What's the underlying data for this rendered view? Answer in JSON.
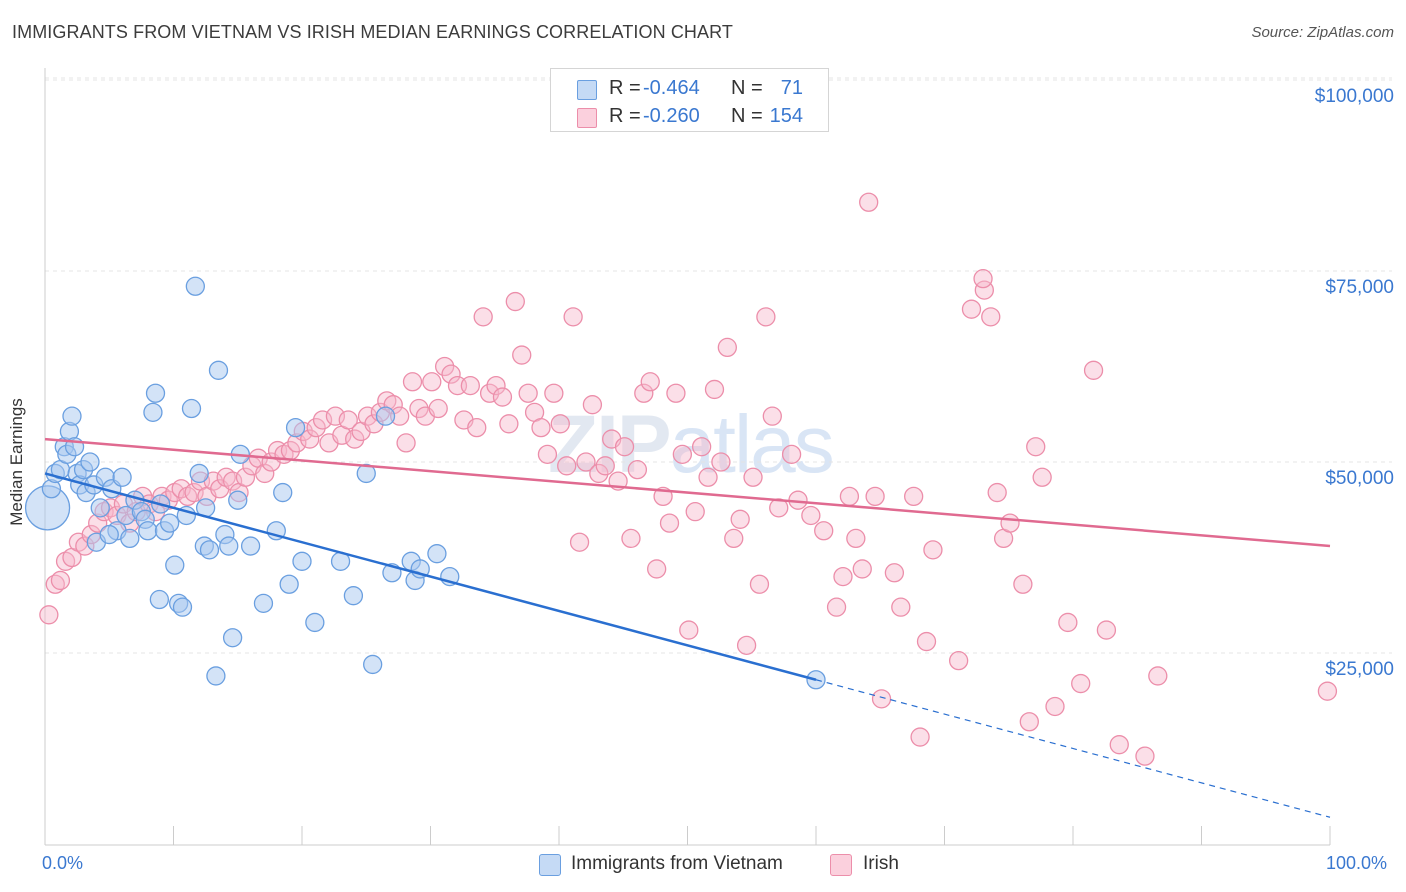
{
  "header": {
    "title": "IMMIGRANTS FROM VIETNAM VS IRISH MEDIAN EARNINGS CORRELATION CHART",
    "source": "Source: ZipAtlas.com"
  },
  "watermark": {
    "zip": "ZIP",
    "atlas": "atlas"
  },
  "legend_top": {
    "rows": [
      {
        "r_label": "R =",
        "r_value": "-0.464",
        "n_label": "N =",
        "n_value": "71"
      },
      {
        "r_label": "R =",
        "r_value": "-0.260",
        "n_label": "N =",
        "n_value": "154"
      }
    ]
  },
  "legend_bottom": {
    "items": [
      {
        "label": "Immigrants from Vietnam"
      },
      {
        "label": "Irish"
      }
    ]
  },
  "axes": {
    "y_title": "Median Earnings",
    "y_ticks": [
      "$100,000",
      "$75,000",
      "$50,000",
      "$25,000"
    ],
    "x_min_label": "0.0%",
    "x_max_label": "100.0%"
  },
  "colors": {
    "vietnam_fill": "#a8c8f0",
    "vietnam_stroke": "#6a9fe0",
    "vietnam_line": "#2a6fd0",
    "irish_fill": "#f7b8cb",
    "irish_stroke": "#ec8eaa",
    "irish_line": "#e06a90",
    "grid": "#e4e4e4",
    "axis_text": "#3a78d0"
  },
  "chart_data": {
    "type": "scatter",
    "title": "IMMIGRANTS FROM VIETNAM VS IRISH MEDIAN EARNINGS CORRELATION CHART",
    "xlabel": "",
    "ylabel": "Median Earnings",
    "xlim": [
      0,
      100
    ],
    "ylim": [
      0,
      105000
    ],
    "grid": true,
    "legend_position": "bottom",
    "series": [
      {
        "name": "Immigrants from Vietnam",
        "R": -0.464,
        "N": 71,
        "trend": {
          "x0": 0,
          "y0": 48500,
          "x1": 60,
          "y1": 21500,
          "dashed_to_x": 100,
          "dashed_to_y": 3500
        },
        "points": [
          [
            0.2,
            44000
          ],
          [
            0.5,
            46500
          ],
          [
            0.8,
            48500
          ],
          [
            1.2,
            49000
          ],
          [
            1.5,
            52000
          ],
          [
            1.7,
            51000
          ],
          [
            1.9,
            54000
          ],
          [
            2.1,
            56000
          ],
          [
            2.3,
            52000
          ],
          [
            2.5,
            48500
          ],
          [
            2.7,
            47000
          ],
          [
            3.0,
            49000
          ],
          [
            3.2,
            46000
          ],
          [
            3.5,
            50000
          ],
          [
            3.8,
            47000
          ],
          [
            4.0,
            39500
          ],
          [
            4.3,
            44000
          ],
          [
            4.7,
            48000
          ],
          [
            5.2,
            46500
          ],
          [
            5.6,
            41000
          ],
          [
            6.0,
            48000
          ],
          [
            6.3,
            43000
          ],
          [
            6.6,
            40000
          ],
          [
            7.0,
            45000
          ],
          [
            7.5,
            43500
          ],
          [
            7.8,
            42500
          ],
          [
            8.0,
            41000
          ],
          [
            8.4,
            56500
          ],
          [
            8.6,
            59000
          ],
          [
            8.9,
            32000
          ],
          [
            9.3,
            41000
          ],
          [
            9.7,
            42000
          ],
          [
            10.1,
            36500
          ],
          [
            10.4,
            31500
          ],
          [
            10.7,
            31000
          ],
          [
            11.0,
            43000
          ],
          [
            11.4,
            57000
          ],
          [
            11.7,
            73000
          ],
          [
            12.0,
            48500
          ],
          [
            12.4,
            39000
          ],
          [
            12.8,
            38500
          ],
          [
            13.3,
            22000
          ],
          [
            13.5,
            62000
          ],
          [
            14.0,
            40500
          ],
          [
            14.3,
            39000
          ],
          [
            14.6,
            27000
          ],
          [
            15.2,
            51000
          ],
          [
            16.0,
            39000
          ],
          [
            17.0,
            31500
          ],
          [
            18.0,
            41000
          ],
          [
            18.5,
            46000
          ],
          [
            19.0,
            34000
          ],
          [
            19.5,
            54500
          ],
          [
            20.0,
            37000
          ],
          [
            21.0,
            29000
          ],
          [
            23.0,
            37000
          ],
          [
            24.0,
            32500
          ],
          [
            25.0,
            48500
          ],
          [
            25.5,
            23500
          ],
          [
            27.0,
            35500
          ],
          [
            28.5,
            37000
          ],
          [
            28.8,
            34500
          ],
          [
            29.2,
            36000
          ],
          [
            30.5,
            38000
          ],
          [
            31.5,
            35000
          ],
          [
            26.5,
            56000
          ],
          [
            15.0,
            45000
          ],
          [
            9.0,
            44500
          ],
          [
            5.0,
            40500
          ],
          [
            12.5,
            44000
          ],
          [
            60.0,
            21500
          ]
        ]
      },
      {
        "name": "Irish",
        "R": -0.26,
        "N": 154,
        "trend": {
          "x0": 0,
          "y0": 53000,
          "x1": 100,
          "y1": 39000
        },
        "points": [
          [
            0.3,
            30000
          ],
          [
            0.8,
            34000
          ],
          [
            1.2,
            34500
          ],
          [
            1.6,
            37000
          ],
          [
            2.1,
            37500
          ],
          [
            2.6,
            39500
          ],
          [
            3.1,
            39000
          ],
          [
            3.6,
            40500
          ],
          [
            4.1,
            42000
          ],
          [
            4.6,
            43500
          ],
          [
            5.1,
            44000
          ],
          [
            5.6,
            43000
          ],
          [
            6.1,
            44500
          ],
          [
            6.6,
            42000
          ],
          [
            7.1,
            43500
          ],
          [
            7.6,
            45500
          ],
          [
            8.1,
            44500
          ],
          [
            8.6,
            43500
          ],
          [
            9.1,
            45500
          ],
          [
            9.6,
            45000
          ],
          [
            10.1,
            46000
          ],
          [
            10.6,
            46500
          ],
          [
            11.1,
            45500
          ],
          [
            11.6,
            46000
          ],
          [
            12.1,
            47500
          ],
          [
            12.6,
            45500
          ],
          [
            13.1,
            47500
          ],
          [
            13.6,
            46500
          ],
          [
            14.1,
            48000
          ],
          [
            14.6,
            47500
          ],
          [
            15.1,
            46000
          ],
          [
            15.6,
            48000
          ],
          [
            16.1,
            49500
          ],
          [
            16.6,
            50500
          ],
          [
            17.1,
            48500
          ],
          [
            17.6,
            50000
          ],
          [
            18.1,
            51500
          ],
          [
            18.6,
            51000
          ],
          [
            19.1,
            51500
          ],
          [
            19.6,
            52500
          ],
          [
            20.1,
            54000
          ],
          [
            20.6,
            53000
          ],
          [
            21.1,
            54500
          ],
          [
            21.6,
            55500
          ],
          [
            22.1,
            52500
          ],
          [
            22.6,
            56000
          ],
          [
            23.1,
            53500
          ],
          [
            23.6,
            55500
          ],
          [
            24.1,
            53000
          ],
          [
            24.6,
            54000
          ],
          [
            25.1,
            56000
          ],
          [
            25.6,
            55000
          ],
          [
            26.1,
            56500
          ],
          [
            26.6,
            58000
          ],
          [
            27.1,
            57500
          ],
          [
            27.6,
            56000
          ],
          [
            28.1,
            52500
          ],
          [
            28.6,
            60500
          ],
          [
            29.1,
            57000
          ],
          [
            29.6,
            56000
          ],
          [
            30.1,
            60500
          ],
          [
            30.6,
            57000
          ],
          [
            31.1,
            62500
          ],
          [
            31.6,
            61500
          ],
          [
            32.1,
            60000
          ],
          [
            32.6,
            55500
          ],
          [
            33.1,
            60000
          ],
          [
            33.6,
            54500
          ],
          [
            34.1,
            69000
          ],
          [
            34.6,
            59000
          ],
          [
            35.1,
            60000
          ],
          [
            35.6,
            58500
          ],
          [
            36.1,
            55000
          ],
          [
            36.6,
            71000
          ],
          [
            37.1,
            64000
          ],
          [
            37.6,
            59000
          ],
          [
            38.1,
            56500
          ],
          [
            38.6,
            54500
          ],
          [
            39.1,
            51000
          ],
          [
            39.6,
            59000
          ],
          [
            40.1,
            55000
          ],
          [
            40.6,
            49500
          ],
          [
            41.1,
            69000
          ],
          [
            41.6,
            39500
          ],
          [
            42.1,
            50000
          ],
          [
            42.6,
            57500
          ],
          [
            43.1,
            48500
          ],
          [
            43.6,
            49500
          ],
          [
            44.1,
            53000
          ],
          [
            44.6,
            47500
          ],
          [
            45.1,
            52000
          ],
          [
            45.6,
            40000
          ],
          [
            46.1,
            49000
          ],
          [
            46.6,
            59000
          ],
          [
            47.1,
            60500
          ],
          [
            47.6,
            36000
          ],
          [
            48.1,
            45500
          ],
          [
            48.6,
            42000
          ],
          [
            49.1,
            59000
          ],
          [
            49.6,
            51000
          ],
          [
            50.1,
            28000
          ],
          [
            50.6,
            43500
          ],
          [
            51.1,
            52000
          ],
          [
            51.6,
            48000
          ],
          [
            52.1,
            59500
          ],
          [
            52.6,
            50000
          ],
          [
            53.1,
            65000
          ],
          [
            53.6,
            40000
          ],
          [
            54.1,
            42500
          ],
          [
            54.6,
            26000
          ],
          [
            55.1,
            48000
          ],
          [
            55.6,
            34000
          ],
          [
            56.1,
            69000
          ],
          [
            56.6,
            56000
          ],
          [
            57.1,
            44000
          ],
          [
            58.1,
            51000
          ],
          [
            58.6,
            45000
          ],
          [
            59.6,
            43000
          ],
          [
            60.6,
            41000
          ],
          [
            61.6,
            31000
          ],
          [
            62.1,
            35000
          ],
          [
            62.6,
            45500
          ],
          [
            63.1,
            40000
          ],
          [
            63.6,
            36000
          ],
          [
            64.1,
            84000
          ],
          [
            64.6,
            45500
          ],
          [
            65.1,
            19000
          ],
          [
            66.1,
            35500
          ],
          [
            66.6,
            31000
          ],
          [
            67.6,
            45500
          ],
          [
            68.1,
            14000
          ],
          [
            68.6,
            26500
          ],
          [
            69.1,
            38500
          ],
          [
            71.1,
            24000
          ],
          [
            72.1,
            70000
          ],
          [
            73.1,
            72500
          ],
          [
            73.6,
            69000
          ],
          [
            74.1,
            46000
          ],
          [
            74.6,
            40000
          ],
          [
            75.1,
            42000
          ],
          [
            76.1,
            34000
          ],
          [
            76.6,
            16000
          ],
          [
            77.1,
            52000
          ],
          [
            77.6,
            48000
          ],
          [
            78.6,
            18000
          ],
          [
            79.6,
            29000
          ],
          [
            80.6,
            21000
          ],
          [
            81.6,
            62000
          ],
          [
            82.6,
            28000
          ],
          [
            83.6,
            13000
          ],
          [
            85.6,
            11500
          ],
          [
            86.6,
            22000
          ],
          [
            99.8,
            20000
          ],
          [
            73.0,
            74000
          ]
        ]
      }
    ]
  }
}
